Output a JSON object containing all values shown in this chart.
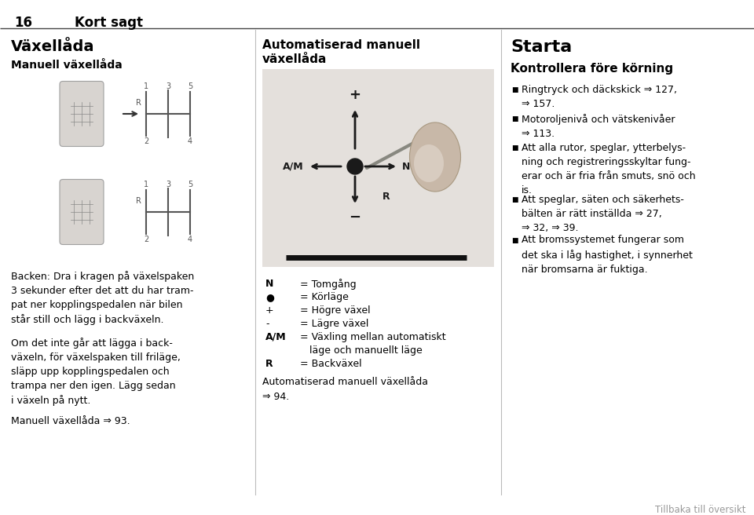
{
  "bg_color": "#ffffff",
  "text_color": "#000000",
  "gray_color": "#aaaaaa",
  "header_number": "16",
  "header_title": "Kort sagt",
  "col1_heading": "Växellåda",
  "col1_subheading": "Manuell växellåda",
  "col1_text1": "Backen: Dra i kragen på växelspaken\n3 sekunder efter det att du har tram-\npat ner kopplingspedalen när bilen\nstår still och lägg i backväxeln.",
  "col1_text2": "Om det inte går att lägga i back-\nväxeln, för växelspaken till friläge,\nsläpp upp kopplingspedalen och\ntrampa ner den igen. Lägg sedan\ni växeln på nytt.",
  "col1_text3": "Manuell växellåda ⇒ 93.",
  "col2_heading1": "Automatiserad manuell",
  "col2_heading2": "växellåda",
  "col2_footer": "Automatiserad manuell växellåda\n⇒ 94.",
  "col3_heading": "Starta",
  "col3_subheading": "Kontrollera före körning",
  "col3_bullet1": "Ringtryck och däckskick ⇒ 127,\n⇒ 157.",
  "col3_bullet2": "Motoroljenivå och vätskenivåer\n⇒ 113.",
  "col3_bullet3": "Att alla rutor, speglar, ytterbelys-\nning och registreringsskyltar fung-\nerar och är fria från smuts, snö och\nis.",
  "col3_bullet4": "Att speglar, säten och säkerhets-\nbälten är rätt inställda ⇒ 27,\n⇒ 32, ⇒ 39.",
  "col3_bullet5": "Att bromssystemet fungerar som\ndet ska i låg hastighet, i synnerhet\nnär bromsarna är fuktiga.",
  "footer_text": "Tillbaka till översikt",
  "legend_rows": [
    [
      "N",
      "= Tomgång"
    ],
    [
      "●",
      "= Körläge"
    ],
    [
      "+",
      "= Högre växel"
    ],
    [
      "-",
      "= Lägre växel"
    ],
    [
      "A/M",
      "= Växling mellan automatiskt"
    ],
    [
      "",
      "   läge och manuellt läge"
    ],
    [
      "R",
      "= Backväxel"
    ]
  ]
}
